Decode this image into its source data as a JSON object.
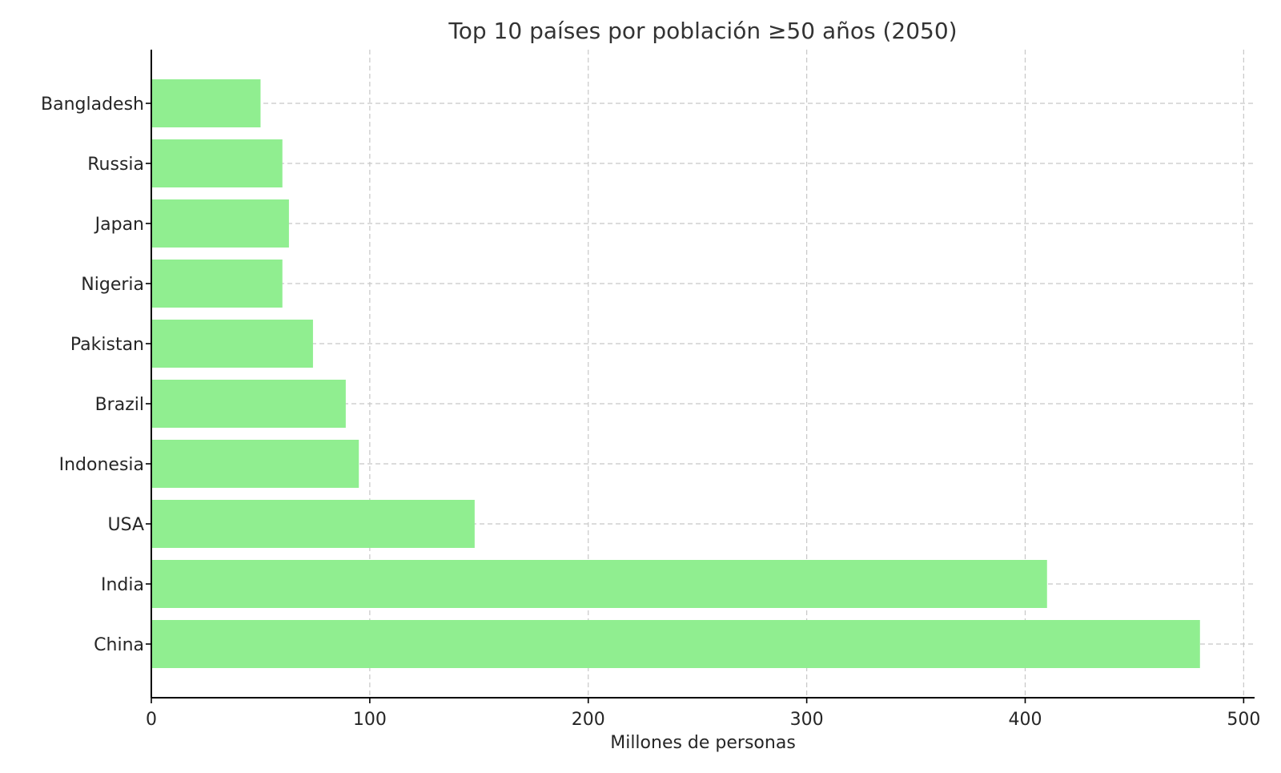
{
  "chart_data": {
    "type": "bar",
    "orientation": "horizontal",
    "title": "Top 10 países por población ≥50 años (2050)",
    "xlabel": "Millones de personas",
    "ylabel": "",
    "categories": [
      "China",
      "India",
      "USA",
      "Indonesia",
      "Brazil",
      "Pakistan",
      "Nigeria",
      "Japan",
      "Russia",
      "Bangladesh"
    ],
    "values": [
      480,
      410,
      148,
      95,
      89,
      74,
      60,
      63,
      60,
      50
    ],
    "xlim": [
      0,
      505
    ],
    "xticks": [
      0,
      100,
      200,
      300,
      400,
      500
    ],
    "xtick_labels": [
      "0",
      "100",
      "200",
      "300",
      "400",
      "500"
    ],
    "grid": true,
    "bar_color": "#90ee90",
    "legend": "none"
  }
}
